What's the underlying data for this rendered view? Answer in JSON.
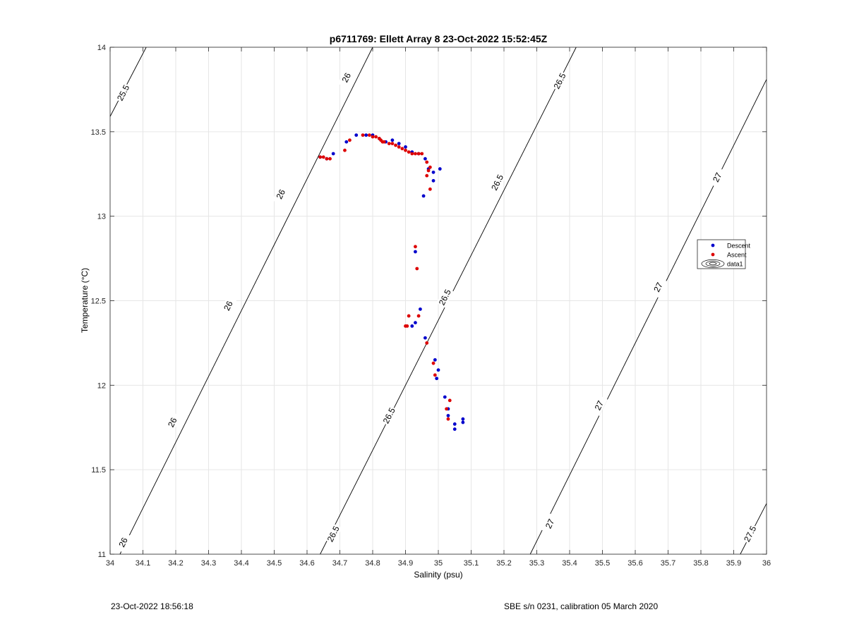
{
  "chart_data": {
    "type": "scatter",
    "title": "p6711769: Ellett Array 8 23-Oct-2022 15:52:45Z",
    "xlabel": "Salinity (psu)",
    "ylabel": "Temperature (°C)",
    "xlim": [
      34,
      36
    ],
    "ylim": [
      11,
      14
    ],
    "xticks": [
      34,
      34.1,
      34.2,
      34.3,
      34.4,
      34.5,
      34.6,
      34.7,
      34.8,
      34.9,
      35,
      35.1,
      35.2,
      35.3,
      35.4,
      35.5,
      35.6,
      35.7,
      35.8,
      35.9,
      36
    ],
    "xtick_labels": [
      "34",
      "34.1",
      "34.2",
      "34.3",
      "34.4",
      "34.5",
      "34.6",
      "34.7",
      "34.8",
      "34.9",
      "35",
      "35.1",
      "35.2",
      "35.3",
      "35.4",
      "35.5",
      "35.6",
      "35.7",
      "35.8",
      "35.9",
      "36"
    ],
    "yticks": [
      11,
      11.5,
      12,
      12.5,
      13,
      13.5,
      14
    ],
    "ytick_labels": [
      "11",
      "11.5",
      "12",
      "12.5",
      "13",
      "13.5",
      "14"
    ],
    "grid": true,
    "legend_position": "right",
    "legend": [
      {
        "name": "Descent",
        "color": "#0000cc",
        "marker": "dot"
      },
      {
        "name": "Ascent",
        "color": "#dd0000",
        "marker": "dot"
      },
      {
        "name": "data1",
        "color": "#000000",
        "marker": "contour"
      }
    ],
    "series": [
      {
        "name": "Descent",
        "color": "#0000cc",
        "points": [
          [
            34.64,
            13.35
          ],
          [
            34.66,
            13.34
          ],
          [
            34.68,
            13.37
          ],
          [
            34.72,
            13.44
          ],
          [
            34.75,
            13.48
          ],
          [
            34.78,
            13.48
          ],
          [
            34.8,
            13.48
          ],
          [
            34.82,
            13.46
          ],
          [
            34.84,
            13.44
          ],
          [
            34.86,
            13.45
          ],
          [
            34.88,
            13.43
          ],
          [
            34.9,
            13.41
          ],
          [
            34.92,
            13.38
          ],
          [
            34.94,
            13.37
          ],
          [
            34.96,
            13.34
          ],
          [
            34.97,
            13.28
          ],
          [
            34.985,
            13.26
          ],
          [
            35.005,
            13.28
          ],
          [
            34.985,
            13.21
          ],
          [
            34.955,
            13.12
          ],
          [
            34.93,
            12.79
          ],
          [
            34.945,
            12.45
          ],
          [
            34.92,
            12.35
          ],
          [
            34.93,
            12.37
          ],
          [
            34.96,
            12.28
          ],
          [
            34.99,
            12.15
          ],
          [
            35.0,
            12.09
          ],
          [
            34.995,
            12.04
          ],
          [
            35.02,
            11.93
          ],
          [
            35.03,
            11.86
          ],
          [
            35.03,
            11.82
          ],
          [
            35.05,
            11.77
          ],
          [
            35.05,
            11.74
          ],
          [
            35.075,
            11.8
          ],
          [
            35.075,
            11.78
          ]
        ]
      },
      {
        "name": "Ascent",
        "color": "#dd0000",
        "points": [
          [
            34.64,
            13.35
          ],
          [
            34.65,
            13.35
          ],
          [
            34.66,
            13.34
          ],
          [
            34.67,
            13.34
          ],
          [
            34.715,
            13.39
          ],
          [
            34.73,
            13.45
          ],
          [
            34.77,
            13.48
          ],
          [
            34.79,
            13.48
          ],
          [
            34.8,
            13.47
          ],
          [
            34.81,
            13.47
          ],
          [
            34.82,
            13.46
          ],
          [
            34.825,
            13.45
          ],
          [
            34.83,
            13.44
          ],
          [
            34.835,
            13.44
          ],
          [
            34.85,
            13.43
          ],
          [
            34.86,
            13.43
          ],
          [
            34.87,
            13.42
          ],
          [
            34.88,
            13.41
          ],
          [
            34.89,
            13.4
          ],
          [
            34.9,
            13.39
          ],
          [
            34.91,
            13.38
          ],
          [
            34.92,
            13.37
          ],
          [
            34.93,
            13.37
          ],
          [
            34.94,
            13.37
          ],
          [
            34.95,
            13.37
          ],
          [
            34.965,
            13.32
          ],
          [
            34.975,
            13.29
          ],
          [
            34.97,
            13.27
          ],
          [
            34.965,
            13.24
          ],
          [
            34.975,
            13.16
          ],
          [
            34.93,
            12.82
          ],
          [
            34.935,
            12.69
          ],
          [
            34.94,
            12.41
          ],
          [
            34.91,
            12.41
          ],
          [
            34.9,
            12.35
          ],
          [
            34.905,
            12.35
          ],
          [
            34.965,
            12.25
          ],
          [
            34.985,
            12.13
          ],
          [
            34.99,
            12.06
          ],
          [
            35.025,
            11.86
          ],
          [
            35.035,
            11.91
          ],
          [
            35.03,
            11.8
          ]
        ]
      }
    ],
    "contours": [
      {
        "label": "25.5",
        "points": [
          [
            34.0,
            13.59
          ],
          [
            34.11,
            14.0
          ]
        ],
        "labels_at": [
          [
            34.04,
            13.73
          ]
        ]
      },
      {
        "label": "26",
        "points": [
          [
            34.03,
            11.0
          ],
          [
            34.8,
            14.0
          ]
        ],
        "labels_at": [
          [
            34.04,
            11.07
          ],
          [
            34.19,
            11.78
          ],
          [
            34.36,
            12.47
          ],
          [
            34.52,
            13.13
          ],
          [
            34.72,
            13.82
          ]
        ]
      },
      {
        "label": "26.5",
        "points": [
          [
            34.64,
            11.0
          ],
          [
            35.42,
            14.0
          ]
        ],
        "labels_at": [
          [
            34.68,
            11.12
          ],
          [
            34.85,
            11.82
          ],
          [
            35.02,
            12.52
          ],
          [
            35.18,
            13.2
          ],
          [
            35.37,
            13.8
          ]
        ]
      },
      {
        "label": "27",
        "points": [
          [
            35.28,
            11.0
          ],
          [
            36.0,
            13.81
          ]
        ],
        "labels_at": [
          [
            35.34,
            11.18
          ],
          [
            35.49,
            11.88
          ],
          [
            35.67,
            12.58
          ],
          [
            35.85,
            13.23
          ]
        ]
      },
      {
        "label": "27.5",
        "points": [
          [
            35.92,
            11.0
          ],
          [
            36.0,
            11.3
          ]
        ],
        "labels_at": [
          [
            35.95,
            11.12
          ]
        ]
      }
    ]
  },
  "footer": {
    "timestamp": "23-Oct-2022 18:56:18",
    "calibration": "SBE s/n 0231, calibration 05 March 2020"
  }
}
